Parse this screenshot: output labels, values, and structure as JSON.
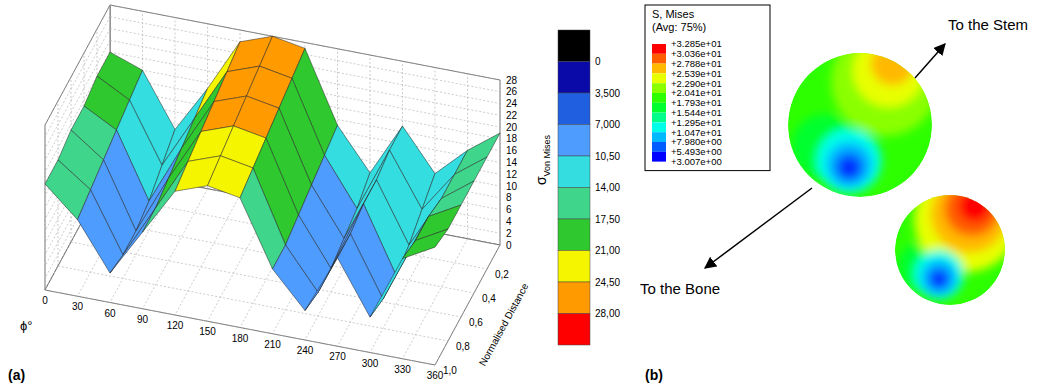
{
  "chart_data": [
    {
      "type": "surface",
      "panel": "(a)",
      "x_label": "ϕ°",
      "y_label": "Normalised Distance",
      "z_label": "σ",
      "z_label_sub": "Von Mises",
      "x": [
        0,
        30,
        60,
        90,
        120,
        150,
        180,
        210,
        240,
        270,
        300,
        330,
        360
      ],
      "y": [
        0,
        0.2,
        0.4,
        0.6,
        0.8,
        1.0
      ],
      "z": [
        [
          20,
          18,
          9,
          17,
          26,
          28,
          27,
          15,
          8,
          17,
          10,
          15,
          19
        ],
        [
          20,
          17,
          7,
          16,
          25,
          27,
          26,
          14,
          6,
          17,
          8,
          15,
          19
        ],
        [
          19,
          16,
          5,
          15,
          24,
          26,
          25,
          13,
          5,
          16,
          6,
          15,
          19
        ],
        [
          19,
          15,
          4,
          14,
          23,
          25,
          24,
          12,
          4,
          16,
          5,
          16,
          19
        ],
        [
          18,
          14,
          4,
          13,
          22,
          24,
          23,
          11,
          4,
          15,
          5,
          16,
          19
        ],
        [
          18,
          13,
          5,
          13,
          21,
          23,
          22,
          11,
          5,
          15,
          6,
          17,
          20
        ]
      ],
      "xlim": [
        0,
        360
      ],
      "xticks": [
        0,
        30,
        60,
        90,
        120,
        150,
        180,
        210,
        240,
        270,
        300,
        330,
        360
      ],
      "ylim": [
        0,
        1
      ],
      "yticks": [
        {
          "value": 0.2,
          "label": "0,2"
        },
        {
          "value": 0.4,
          "label": "0,4"
        },
        {
          "value": 0.6,
          "label": "0,6"
        },
        {
          "value": 0.8,
          "label": "0,8"
        },
        {
          "value": 1.0,
          "label": "1,0"
        }
      ],
      "zlim": [
        0,
        28
      ],
      "zticks": [
        0,
        2,
        4,
        6,
        8,
        10,
        12,
        14,
        16,
        18,
        20,
        22,
        24,
        26,
        28
      ],
      "colorbar": {
        "values": [
          0,
          3.5,
          7,
          10.5,
          14,
          17.5,
          21,
          24.5,
          28
        ],
        "labels": [
          "0",
          "3,500",
          "7,000",
          "10,50",
          "14,00",
          "17,50",
          "21,00",
          "24,50",
          "28,00"
        ],
        "colors": [
          "#000000",
          "#0a0aa8",
          "#1f5fe0",
          "#4f9cff",
          "#33dde0",
          "#3fd68c",
          "#2fc82f",
          "#f5f500",
          "#ff9a00",
          "#ff0000"
        ]
      }
    },
    {
      "type": "contour",
      "panel": "(b)",
      "legend_title": "S, Mises",
      "legend_subtitle": "(Avg: 75%)",
      "colorbar": {
        "values": [
          32.85,
          30.36,
          27.88,
          25.39,
          22.9,
          20.41,
          17.93,
          15.44,
          12.95,
          10.47,
          7.98,
          5.493,
          3.007
        ],
        "labels": [
          "+3.285e+01",
          "+3.036e+01",
          "+2.788e+01",
          "+2.539e+01",
          "+2.290e+01",
          "+2.041e+01",
          "+1.793e+01",
          "+1.544e+01",
          "+1.295e+01",
          "+1.047e+01",
          "+7.980e+00",
          "+5.493e+00",
          "+3.007e+00"
        ],
        "colors": [
          "#ff0000",
          "#ff5d00",
          "#ffb900",
          "#e8ff00",
          "#8aff00",
          "#2eff00",
          "#00ff2e",
          "#00ff8a",
          "#00ffe8",
          "#00b9ff",
          "#005dff",
          "#0000ff"
        ]
      },
      "annotations": [
        "To the Stem",
        "To the Bone"
      ]
    }
  ]
}
